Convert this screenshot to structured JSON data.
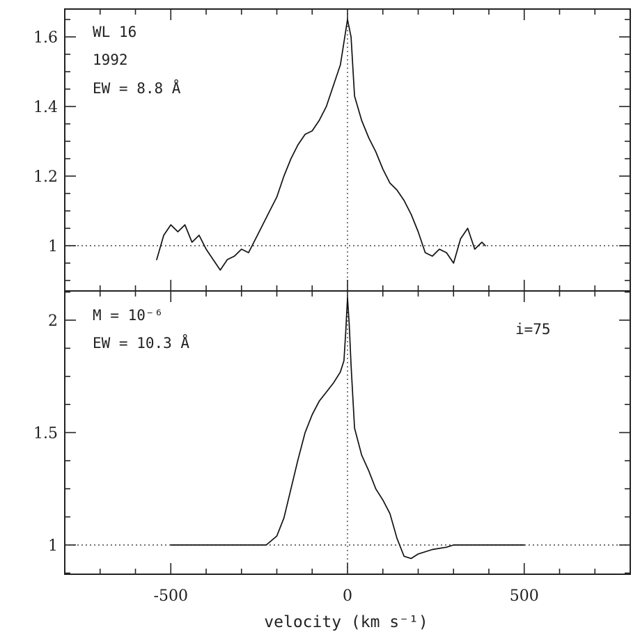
{
  "chart_data": [
    {
      "type": "line",
      "panel": "top",
      "xlabel": "",
      "ylabel": "",
      "xlim": [
        -800,
        800
      ],
      "ylim": [
        0.87,
        1.68
      ],
      "x_ticks": [
        -500,
        0,
        500
      ],
      "x_tick_labels": [
        "",
        "",
        ""
      ],
      "y_ticks": [
        1,
        1.2,
        1.4,
        1.6
      ],
      "y_tick_labels": [
        "1",
        "1.2",
        "1.4",
        "1.6"
      ],
      "reference_lines": {
        "y": 1,
        "x": 0
      },
      "annotations": [
        "WL 16",
        "1992",
        "EW = 8.8 Å"
      ],
      "series": [
        {
          "x": [
            -540,
            -520,
            -500,
            -480,
            -460,
            -440,
            -420,
            -400,
            -380,
            -360,
            -340,
            -320,
            -300,
            -280,
            -260,
            -240,
            -220,
            -200,
            -180,
            -160,
            -140,
            -120,
            -100,
            -80,
            -60,
            -40,
            -20,
            0,
            10,
            20,
            40,
            60,
            80,
            100,
            120,
            140,
            160,
            180,
            200,
            220,
            240,
            260,
            280,
            300,
            320,
            340,
            360,
            380,
            390
          ],
          "y": [
            0.96,
            1.03,
            1.06,
            1.04,
            1.06,
            1.01,
            1.03,
            0.99,
            0.96,
            0.93,
            0.96,
            0.97,
            0.99,
            0.98,
            1.02,
            1.06,
            1.1,
            1.14,
            1.2,
            1.25,
            1.29,
            1.32,
            1.33,
            1.36,
            1.4,
            1.46,
            1.52,
            1.65,
            1.6,
            1.43,
            1.36,
            1.31,
            1.27,
            1.22,
            1.18,
            1.16,
            1.13,
            1.09,
            1.04,
            0.98,
            0.97,
            0.99,
            0.98,
            0.95,
            1.02,
            1.05,
            0.99,
            1.01,
            1.0
          ]
        }
      ]
    },
    {
      "type": "line",
      "panel": "bottom",
      "xlabel": "velocity (km s⁻¹)",
      "ylabel": "",
      "xlim": [
        -800,
        800
      ],
      "ylim": [
        0.87,
        2.13
      ],
      "x_ticks": [
        -500,
        0,
        500
      ],
      "x_tick_labels": [
        "-500",
        "0",
        "500"
      ],
      "y_ticks": [
        1,
        1.5,
        2
      ],
      "y_tick_labels": [
        "1",
        "1.5",
        "2"
      ],
      "reference_lines": {
        "y": 1,
        "x": 0
      },
      "annotations": [
        "M = 10⁻⁶",
        "EW = 10.3 Å",
        "i=75"
      ],
      "series": [
        {
          "x": [
            -500,
            -400,
            -300,
            -230,
            -200,
            -180,
            -160,
            -140,
            -120,
            -100,
            -80,
            -60,
            -40,
            -20,
            -10,
            -5,
            0,
            5,
            10,
            20,
            40,
            60,
            80,
            100,
            120,
            140,
            160,
            180,
            200,
            240,
            280,
            300,
            400,
            500
          ],
          "y": [
            1.0,
            1.0,
            1.0,
            1.0,
            1.04,
            1.12,
            1.25,
            1.38,
            1.5,
            1.58,
            1.64,
            1.68,
            1.72,
            1.77,
            1.82,
            1.95,
            2.1,
            1.98,
            1.8,
            1.52,
            1.4,
            1.33,
            1.25,
            1.2,
            1.14,
            1.03,
            0.95,
            0.94,
            0.96,
            0.98,
            0.99,
            1.0,
            1.0,
            1.0
          ]
        }
      ]
    }
  ]
}
